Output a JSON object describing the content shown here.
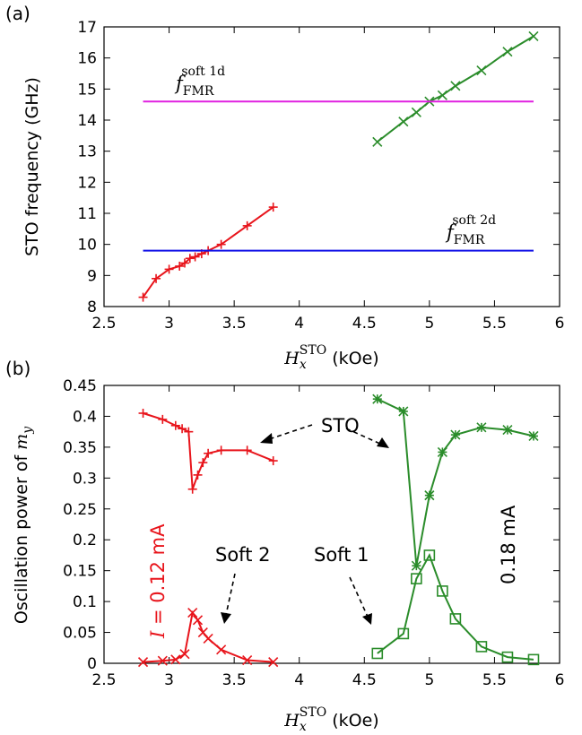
{
  "chart_data": [
    {
      "panel": "(a)",
      "type": "line",
      "xlabel": "H_x^STO (kOe)",
      "ylabel": "STO frequency (GHz)",
      "xlim": [
        2.5,
        6
      ],
      "ylim": [
        8,
        17
      ],
      "xticks": [
        "2.5",
        "3",
        "3.5",
        "4",
        "4.5",
        "5",
        "5.5",
        "6"
      ],
      "yticks": [
        "8",
        "9",
        "10",
        "11",
        "12",
        "13",
        "14",
        "15",
        "16",
        "17"
      ],
      "grid": false,
      "series": [
        {
          "color": "#e8141b",
          "marker": "plus",
          "x": [
            2.8,
            2.9,
            3.0,
            3.08,
            3.12,
            3.16,
            3.2,
            3.25,
            3.3,
            3.4,
            3.6,
            3.8
          ],
          "y": [
            8.3,
            8.9,
            9.2,
            9.3,
            9.4,
            9.55,
            9.6,
            9.7,
            9.8,
            10.0,
            10.6,
            11.2
          ]
        },
        {
          "color": "#2a8c2a",
          "marker": "x",
          "x": [
            4.6,
            4.8,
            4.9,
            5.0,
            5.1,
            5.2,
            5.4,
            5.6,
            5.8
          ],
          "y": [
            13.3,
            13.95,
            14.25,
            14.6,
            14.8,
            15.1,
            15.6,
            16.2,
            16.7
          ]
        },
        {
          "color": "#e020e0",
          "marker": "none",
          "x": [
            2.8,
            5.8
          ],
          "y": [
            14.6,
            14.6
          ]
        },
        {
          "color": "#1010e8",
          "marker": "none",
          "x": [
            2.8,
            5.8
          ],
          "y": [
            9.8,
            9.8
          ]
        }
      ],
      "annotations": [
        {
          "f": "f",
          "sub": "FMR",
          "sup": "soft 1d"
        },
        {
          "f": "f",
          "sub": "FMR",
          "sup": "soft 2d"
        }
      ]
    },
    {
      "panel": "(b)",
      "type": "line",
      "xlabel": "H_x^STO (kOe)",
      "ylabel_prefix": "Oscillation power of ",
      "ylabel_math": "m",
      "ylabel_sub": "y",
      "xlim": [
        2.5,
        6
      ],
      "ylim": [
        0,
        0.45
      ],
      "xticks": [
        "2.5",
        "3",
        "3.5",
        "4",
        "4.5",
        "5",
        "5.5",
        "6"
      ],
      "yticks": [
        "0",
        "0.05",
        "0.1",
        "0.15",
        "0.2",
        "0.25",
        "0.3",
        "0.35",
        "0.4",
        "0.45"
      ],
      "grid": false,
      "series": [
        {
          "color": "#e8141b",
          "marker": "plus",
          "x": [
            2.8,
            2.95,
            3.05,
            3.1,
            3.15,
            3.18,
            3.22,
            3.26,
            3.3,
            3.4,
            3.6,
            3.8
          ],
          "y": [
            0.405,
            0.395,
            0.385,
            0.38,
            0.375,
            0.282,
            0.305,
            0.325,
            0.34,
            0.345,
            0.345,
            0.328
          ]
        },
        {
          "color": "#e8141b",
          "marker": "x",
          "x": [
            2.8,
            2.95,
            3.05,
            3.12,
            3.18,
            3.22,
            3.26,
            3.3,
            3.4,
            3.6,
            3.8
          ],
          "y": [
            0.002,
            0.004,
            0.006,
            0.015,
            0.082,
            0.07,
            0.05,
            0.04,
            0.022,
            0.005,
            0.002
          ]
        },
        {
          "color": "#2a8c2a",
          "marker": "star",
          "x": [
            4.6,
            4.8,
            4.9,
            5.0,
            5.1,
            5.2,
            5.4,
            5.6,
            5.8
          ],
          "y": [
            0.428,
            0.408,
            0.158,
            0.272,
            0.342,
            0.37,
            0.382,
            0.378,
            0.368
          ]
        },
        {
          "color": "#2a8c2a",
          "marker": "square",
          "x": [
            4.6,
            4.8,
            4.9,
            5.0,
            5.1,
            5.2,
            5.4,
            5.6,
            5.8
          ],
          "y": [
            0.016,
            0.048,
            0.137,
            0.175,
            0.117,
            0.072,
            0.027,
            0.01,
            0.006
          ]
        }
      ],
      "annotations": [
        {
          "text": "STO"
        },
        {
          "text": "Soft 2"
        },
        {
          "text": "Soft 1"
        },
        {
          "math": "I",
          "text": " = 0.12 mA",
          "color": "#e8141b"
        },
        {
          "text": "0.18 mA",
          "color": "#2a8c2a"
        }
      ]
    }
  ]
}
